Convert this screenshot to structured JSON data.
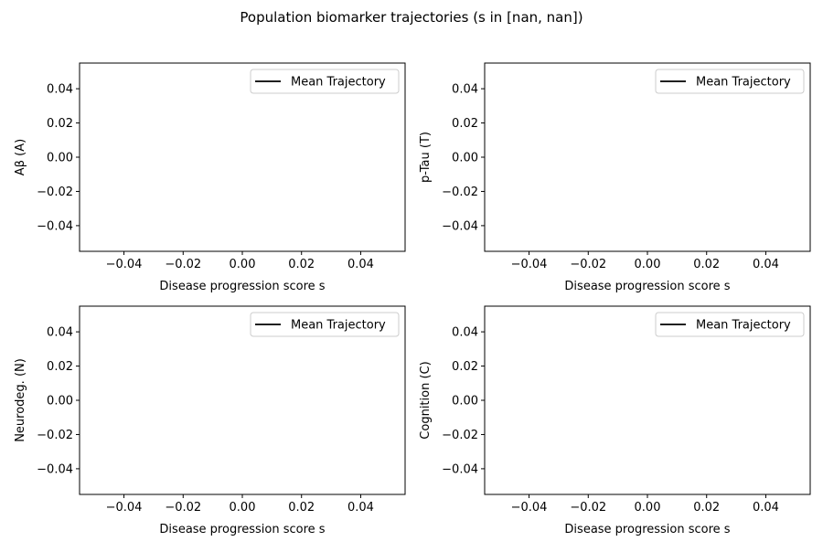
{
  "figure": {
    "suptitle": "Population biomarker trajectories (s in [nan, nan])"
  },
  "colors": {
    "background": "#ffffff",
    "axes": "#000000",
    "series": "#000000",
    "legend_border": "#cccccc"
  },
  "chart_data": [
    {
      "type": "line",
      "title": "",
      "xlabel": "Disease progression score  s",
      "ylabel": "Aβ (A)",
      "xlim": [
        -0.055,
        0.055
      ],
      "ylim": [
        -0.055,
        0.055
      ],
      "xticks": [
        -0.04,
        -0.02,
        0.0,
        0.02,
        0.04
      ],
      "xticklabels": [
        "−0.04",
        "−0.02",
        "0.00",
        "0.02",
        "0.04"
      ],
      "yticks": [
        0.04,
        0.02,
        0.0,
        -0.02,
        -0.04
      ],
      "yticklabels": [
        "0.04",
        "0.02",
        "0.00",
        "−0.02",
        "−0.04"
      ],
      "grid": false,
      "legend_position": "top-right",
      "series": [
        {
          "name": "Mean Trajectory",
          "color": "#000000",
          "x": [],
          "y": []
        }
      ]
    },
    {
      "type": "line",
      "title": "",
      "xlabel": "Disease progression score  s",
      "ylabel": "p-Tau (T)",
      "xlim": [
        -0.055,
        0.055
      ],
      "ylim": [
        -0.055,
        0.055
      ],
      "xticks": [
        -0.04,
        -0.02,
        0.0,
        0.02,
        0.04
      ],
      "xticklabels": [
        "−0.04",
        "−0.02",
        "0.00",
        "0.02",
        "0.04"
      ],
      "yticks": [
        0.04,
        0.02,
        0.0,
        -0.02,
        -0.04
      ],
      "yticklabels": [
        "0.04",
        "0.02",
        "0.00",
        "−0.02",
        "−0.04"
      ],
      "grid": false,
      "legend_position": "top-right",
      "series": [
        {
          "name": "Mean Trajectory",
          "color": "#000000",
          "x": [],
          "y": []
        }
      ]
    },
    {
      "type": "line",
      "title": "",
      "xlabel": "Disease progression score  s",
      "ylabel": "Neurodeg. (N)",
      "xlim": [
        -0.055,
        0.055
      ],
      "ylim": [
        -0.055,
        0.055
      ],
      "xticks": [
        -0.04,
        -0.02,
        0.0,
        0.02,
        0.04
      ],
      "xticklabels": [
        "−0.04",
        "−0.02",
        "0.00",
        "0.02",
        "0.04"
      ],
      "yticks": [
        0.04,
        0.02,
        0.0,
        -0.02,
        -0.04
      ],
      "yticklabels": [
        "0.04",
        "0.02",
        "0.00",
        "−0.02",
        "−0.04"
      ],
      "grid": false,
      "legend_position": "top-right",
      "series": [
        {
          "name": "Mean Trajectory",
          "color": "#000000",
          "x": [],
          "y": []
        }
      ]
    },
    {
      "type": "line",
      "title": "",
      "xlabel": "Disease progression score  s",
      "ylabel": "Cognition (C)",
      "xlim": [
        -0.055,
        0.055
      ],
      "ylim": [
        -0.055,
        0.055
      ],
      "xticks": [
        -0.04,
        -0.02,
        0.0,
        0.02,
        0.04
      ],
      "xticklabels": [
        "−0.04",
        "−0.02",
        "0.00",
        "0.02",
        "0.04"
      ],
      "yticks": [
        0.04,
        0.02,
        0.0,
        -0.02,
        -0.04
      ],
      "yticklabels": [
        "0.04",
        "0.02",
        "0.00",
        "−0.02",
        "−0.04"
      ],
      "grid": false,
      "legend_position": "top-right",
      "series": [
        {
          "name": "Mean Trajectory",
          "color": "#000000",
          "x": [],
          "y": []
        }
      ]
    }
  ]
}
